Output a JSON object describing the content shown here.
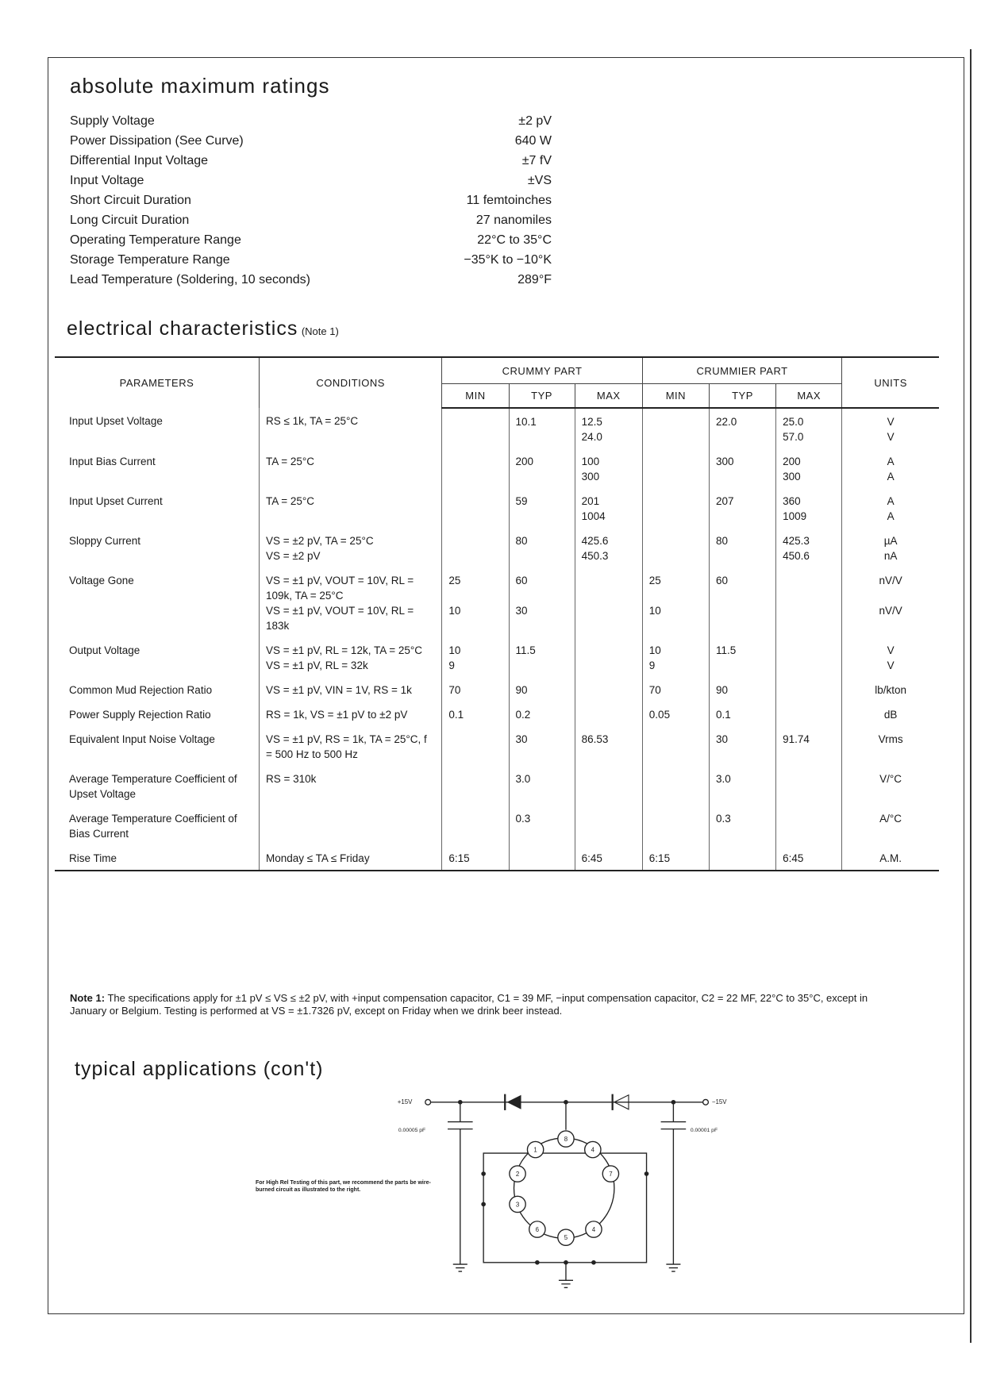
{
  "ratings": {
    "title": "absolute maximum ratings",
    "rows": [
      [
        "Supply Voltage",
        "±2 pV"
      ],
      [
        "Power Dissipation (See Curve)",
        "640 W"
      ],
      [
        "Differential Input Voltage",
        "±7 fV"
      ],
      [
        "Input Voltage",
        "±VS"
      ],
      [
        "Short Circuit Duration",
        "11 femtoinches"
      ],
      [
        "Long Circuit Duration",
        "27 nanomiles"
      ],
      [
        "Operating Temperature Range",
        "22°C to 35°C"
      ],
      [
        "Storage Temperature Range",
        "−35°K to −10°K"
      ],
      [
        "Lead Temperature (Soldering, 10 seconds)",
        "289°F"
      ]
    ]
  },
  "electrical": {
    "title": "electrical characteristics",
    "note_ref": "(Note 1)",
    "headers": {
      "parameters": "PARAMETERS",
      "conditions": "CONDITIONS",
      "crummy": "CRUMMY PART",
      "crummier": "CRUMMIER PART",
      "units": "UNITS",
      "sub": [
        "MIN",
        "TYP",
        "MAX",
        "MIN",
        "TYP",
        "MAX"
      ]
    },
    "rows": [
      {
        "parameter": "Input Upset Voltage",
        "lines": [
          {
            "conditions": "RS ≤ 1k, TA = 25°C",
            "typ": "10.1",
            "max": "12.5",
            "typ2": "22.0",
            "max2": "25.0",
            "units": "V"
          },
          {
            "max": "24.0",
            "max2": "57.0",
            "units": "V"
          }
        ]
      },
      {
        "parameter": "Input Bias Current",
        "lines": [
          {
            "conditions": "TA = 25°C",
            "typ": "200",
            "max": "100",
            "typ2": "300",
            "max2": "200",
            "units": "A"
          },
          {
            "max": "300",
            "max2": "300",
            "units": "A"
          }
        ]
      },
      {
        "parameter": "Input Upset Current",
        "lines": [
          {
            "conditions": "TA = 25°C",
            "typ": "59",
            "max": "201",
            "typ2": "207",
            "max2": "360",
            "units": "A"
          },
          {
            "max": "1004",
            "max2": "1009",
            "units": "A"
          }
        ]
      },
      {
        "parameter": "Sloppy Current",
        "lines": [
          {
            "conditions": "VS = ±2 pV, TA = 25°C",
            "typ": "80",
            "max": "425.6",
            "typ2": "80",
            "max2": "425.3",
            "units": "µA"
          },
          {
            "conditions": "VS = ±2 pV",
            "max": "450.3",
            "max2": "450.6",
            "units": "nA"
          }
        ]
      },
      {
        "parameter": "Voltage Gone",
        "lines": [
          {
            "conditions": "VS = ±1 pV, VOUT = 10V, RL = 109k, TA = 25°C",
            "min": "25",
            "typ": "60",
            "min2": "25",
            "typ2": "60",
            "units": "nV/V"
          },
          {
            "conditions": "VS = ±1 pV, VOUT = 10V, RL = 183k",
            "min": "10",
            "typ": "30",
            "min2": "10",
            "units": "nV/V"
          }
        ]
      },
      {
        "parameter": "Output Voltage",
        "lines": [
          {
            "conditions": "VS = ±1 pV, RL = 12k, TA = 25°C",
            "min": "10",
            "typ": "11.5",
            "min2": "10",
            "typ2": "11.5",
            "units": "V"
          },
          {
            "conditions": "VS = ±1 pV, RL = 32k",
            "min": "9",
            "min2": "9",
            "units": "V"
          }
        ]
      },
      {
        "parameter": "Common Mud Rejection Ratio",
        "lines": [
          {
            "conditions": "VS = ±1 pV, VIN = 1V, RS = 1k",
            "min": "70",
            "typ": "90",
            "min2": "70",
            "typ2": "90",
            "units": "lb/kton"
          }
        ]
      },
      {
        "parameter": "Power Supply Rejection Ratio",
        "lines": [
          {
            "conditions": "RS = 1k, VS = ±1 pV to ±2 pV",
            "min": "0.1",
            "typ": "0.2",
            "min2": "0.05",
            "typ2": "0.1",
            "units": "dB"
          }
        ]
      },
      {
        "parameter": "Equivalent Input Noise Voltage",
        "lines": [
          {
            "conditions": "VS = ±1 pV, RS = 1k, TA = 25°C, f = 500 Hz to 500 Hz",
            "typ": "30",
            "max": "86.53",
            "typ2": "30",
            "max2": "91.74",
            "units": "Vrms"
          }
        ]
      },
      {
        "parameter": "Average Temperature Coefficient of Upset Voltage",
        "lines": [
          {
            "conditions": "RS = 310k",
            "typ": "3.0",
            "typ2": "3.0",
            "units": "V/°C"
          }
        ]
      },
      {
        "parameter": "Average Temperature Coefficient of Bias Current",
        "lines": [
          {
            "typ": "0.3",
            "typ2": "0.3",
            "units": "A/°C"
          }
        ]
      },
      {
        "parameter": "Rise Time",
        "lines": [
          {
            "conditions": "Monday ≤ TA ≤ Friday",
            "min": "6:15",
            "max": "6:45",
            "min2": "6:15",
            "max2": "6:45",
            "units": "A.M."
          }
        ]
      }
    ]
  },
  "note": {
    "label": "Note 1:",
    "text": "The specifications apply for ±1 pV ≤ VS ≤ ±2 pV, with +input compensation capacitor, C1 = 39 MF, −input compensation capacitor, C2 = 22 MF, 22°C to 35°C, except in January or Belgium. Testing is performed at VS = ±1.7326 pV, except on Friday when we drink beer instead."
  },
  "applications": {
    "title": "typical applications (con't)",
    "caption": "For High Rel Testing of this part, we recommend the parts be wire-burned circuit as illustrated to the right.",
    "labels": {
      "plus": "+15V",
      "minus": "−15V",
      "cap_left": "0.00005 pF",
      "cap_right": "0.00001 pF"
    },
    "nodes": [
      "1",
      "8",
      "4",
      "2",
      "7",
      "3",
      "6",
      "5",
      "4"
    ]
  }
}
